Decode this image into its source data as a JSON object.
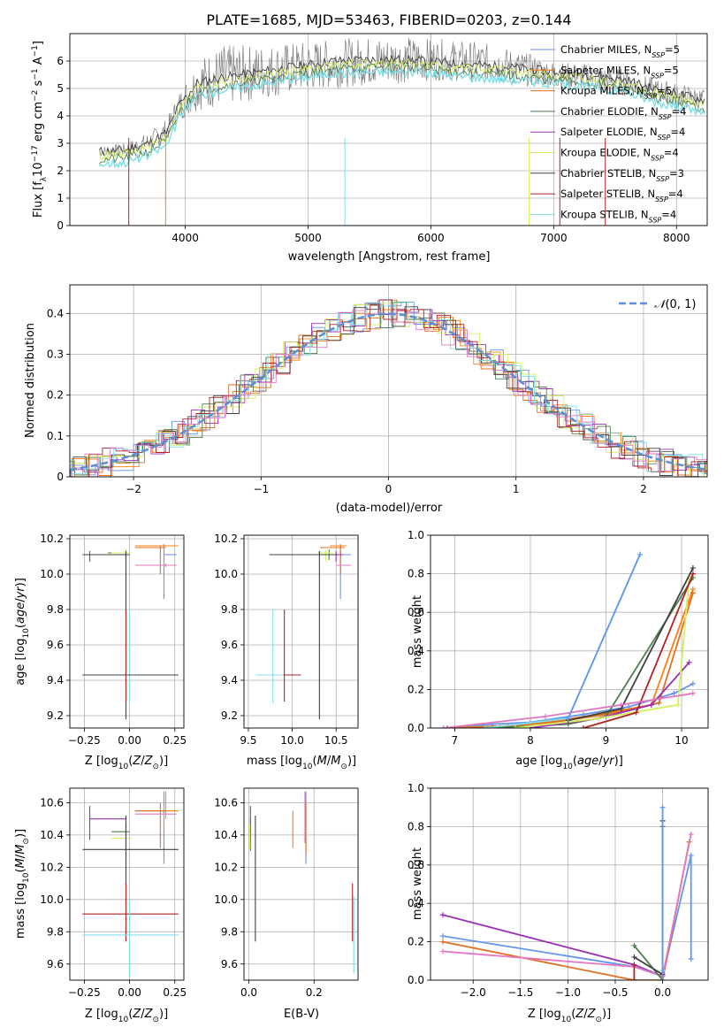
{
  "figure_title": "PLATE=1685, MJD=53463, FIBERID=0203, z=0.144",
  "colors": {
    "chabrier_miles": "#6495ed",
    "salpeter_miles": "#ff7f0e",
    "kroupa_miles": "#e07020",
    "chabrier_elodie": "#4b7f4b",
    "salpeter_elodie": "#9b30b5",
    "kroupa_elodie": "#d4f060",
    "chabrier_stelib": "#404040",
    "salpeter_stelib": "#b22222",
    "kroupa_stelib": "#7fdfe8",
    "data": "#808080",
    "pink": "#e377c2",
    "normal": "#5b8fd6",
    "grid": "#b0b0b0"
  },
  "chart_data": [
    {
      "id": "spectrum",
      "type": "line",
      "title": "PLATE=1685, MJD=53463, FIBERID=0203, z=0.144",
      "xlabel": "wavelength [Angstrom, rest frame]",
      "ylabel": "Flux [fλ10⁻¹⁷ erg cm⁻² s⁻¹ A⁻¹]",
      "xlim": [
        3060,
        8250
      ],
      "ylim": [
        0,
        7.0
      ],
      "xticks": [
        4000,
        5000,
        6000,
        7000,
        8000
      ],
      "yticks": [
        0,
        1,
        2,
        3,
        4,
        5,
        6
      ],
      "grid": true,
      "legend": {
        "placement": "top-right",
        "entries": [
          "Chabrier MILES, N_SSP=5",
          "Salpeter MILES, N_SSP=5",
          "Kroupa MILES, N_SSP=5",
          "Chabrier ELODIE, N_SSP=4",
          "Salpeter ELODIE, N_SSP=4",
          "Kroupa ELODIE, N_SSP=4",
          "Chabrier STELIB, N_SSP=3",
          "Salpeter STELIB, N_SSP=4",
          "Kroupa STELIB, N_SSP=4"
        ]
      },
      "data_envelope": {
        "x": [
          3300,
          3500,
          3700,
          3850,
          3950,
          4100,
          4300,
          4600,
          4900,
          5200,
          5500,
          5800,
          6100,
          6400,
          6700,
          7000,
          7300,
          7600,
          7800,
          8000,
          8200
        ],
        "low": [
          2.5,
          2.5,
          2.7,
          3.0,
          3.8,
          4.2,
          4.3,
          4.6,
          4.8,
          5.0,
          5.1,
          5.2,
          5.3,
          5.2,
          5.1,
          5.0,
          4.9,
          4.7,
          4.5,
          4.3,
          4.2
        ],
        "high": [
          2.9,
          3.0,
          3.4,
          3.9,
          4.9,
          6.1,
          6.6,
          6.6,
          6.7,
          6.8,
          6.9,
          6.9,
          6.8,
          6.7,
          6.4,
          6.0,
          5.9,
          5.7,
          5.4,
          5.2,
          5.0
        ]
      },
      "model_curve": {
        "x": [
          3300,
          3500,
          3700,
          3850,
          3950,
          4100,
          4300,
          4600,
          4900,
          5200,
          5500,
          5800,
          6100,
          6400,
          6700,
          7000,
          7300,
          7600,
          7800,
          8000,
          8200
        ],
        "y": [
          2.7,
          2.75,
          3.0,
          3.4,
          4.4,
          5.2,
          5.4,
          5.6,
          5.8,
          6.0,
          6.05,
          6.05,
          5.95,
          5.85,
          5.75,
          5.6,
          5.5,
          5.3,
          5.0,
          4.8,
          4.6
        ]
      }
    },
    {
      "id": "residuals",
      "type": "step",
      "xlabel": "(data-model)/error",
      "ylabel": "Normed distribution",
      "xlim": [
        -2.5,
        2.5
      ],
      "ylim": [
        0,
        0.47
      ],
      "xticks": [
        -2,
        -1,
        0,
        1,
        2
      ],
      "yticks": [
        0.0,
        0.1,
        0.2,
        0.3,
        0.4
      ],
      "grid": true,
      "legend": {
        "placement": "top-right",
        "entries": [
          "𝒩(0, 1)"
        ]
      }
    },
    {
      "id": "age_vs_Z",
      "type": "errorbar",
      "xlabel": "Z [log₁₀(Z/Z⊙)]",
      "ylabel": "age  [log₁₀(age/yr)]",
      "xlim": [
        -0.33,
        0.3
      ],
      "ylim": [
        9.13,
        10.22
      ],
      "xticks": [
        "-0.25",
        "0.00",
        "0.25"
      ],
      "yticks": [
        "9.2",
        "9.4",
        "9.6",
        "9.8",
        "10.0",
        "10.2"
      ],
      "grid": true,
      "points": [
        {
          "x": 0.19,
          "y": 10.11,
          "xlo": 0.19,
          "xhi": 0.26,
          "ylo": 9.86,
          "yhi": 10.13,
          "color": "chabrier_miles"
        },
        {
          "x": 0.19,
          "y": 10.16,
          "xlo": 0.03,
          "xhi": 0.27,
          "ylo": 10.1,
          "yhi": 10.17,
          "color": "salpeter_miles"
        },
        {
          "x": 0.17,
          "y": 10.15,
          "xlo": 0.03,
          "xhi": 0.2,
          "ylo": 10.0,
          "yhi": 10.16,
          "color": "kroupa_miles"
        },
        {
          "x": -0.02,
          "y": 10.12,
          "xlo": -0.12,
          "xhi": 0.0,
          "ylo": 10.08,
          "yhi": 10.14,
          "color": "chabrier_elodie"
        },
        {
          "x": -0.22,
          "y": 10.11,
          "xlo": -0.22,
          "xhi": 0.0,
          "ylo": 10.07,
          "yhi": 10.13,
          "color": "salpeter_elodie"
        },
        {
          "x": -0.02,
          "y": 10.12,
          "xlo": -0.1,
          "xhi": 0.01,
          "ylo": 10.07,
          "yhi": 10.14,
          "color": "kroupa_elodie"
        },
        {
          "x": -0.02,
          "y": 10.11,
          "xlo": -0.26,
          "xhi": 0.0,
          "ylo": 9.18,
          "yhi": 10.13,
          "color": "chabrier_stelib"
        },
        {
          "x": -0.02,
          "y": 9.43,
          "xlo": -0.26,
          "xhi": 0.27,
          "ylo": 9.28,
          "yhi": 9.8,
          "color": "salpeter_stelib"
        },
        {
          "x": 0.0,
          "y": 9.43,
          "xlo": -0.26,
          "xhi": 0.27,
          "ylo": 9.27,
          "yhi": 9.8,
          "color": "kroupa_stelib"
        },
        {
          "x": 0.2,
          "y": 10.05,
          "xlo": 0.03,
          "xhi": 0.26,
          "ylo": 10.04,
          "yhi": 10.06,
          "color": "pink"
        },
        {
          "x": -0.02,
          "y": 9.43,
          "xlo": -0.26,
          "xhi": 0.27,
          "ylo": 9.43,
          "yhi": 9.43,
          "color": "chabrier_stelib"
        }
      ]
    },
    {
      "id": "age_vs_mass",
      "type": "errorbar",
      "xlabel": "mass [log₁₀(M/M⊙)]",
      "xlim": [
        9.45,
        10.75
      ],
      "ylim": [
        9.13,
        10.22
      ],
      "xticks": [
        "9.5",
        "10.0",
        "10.5"
      ],
      "yticks": [
        "9.2",
        "9.4",
        "9.6",
        "9.8",
        "10.0",
        "10.2"
      ],
      "grid": true,
      "points": [
        {
          "x": 10.55,
          "y": 10.11,
          "xlo": 10.22,
          "xhi": 10.67,
          "ylo": 9.86,
          "yhi": 10.13,
          "color": "chabrier_miles"
        },
        {
          "x": 10.55,
          "y": 10.16,
          "xlo": 10.43,
          "xhi": 10.62,
          "ylo": 10.1,
          "yhi": 10.17,
          "color": "salpeter_miles"
        },
        {
          "x": 10.55,
          "y": 10.15,
          "xlo": 10.32,
          "xhi": 10.6,
          "ylo": 10.0,
          "yhi": 10.16,
          "color": "kroupa_miles"
        },
        {
          "x": 10.42,
          "y": 10.12,
          "xlo": 10.3,
          "xhi": 10.47,
          "ylo": 10.08,
          "yhi": 10.14,
          "color": "chabrier_elodie"
        },
        {
          "x": 10.5,
          "y": 10.11,
          "xlo": 10.37,
          "xhi": 10.58,
          "ylo": 10.07,
          "yhi": 10.13,
          "color": "salpeter_elodie"
        },
        {
          "x": 10.38,
          "y": 10.12,
          "xlo": 10.31,
          "xhi": 10.47,
          "ylo": 10.07,
          "yhi": 10.14,
          "color": "kroupa_elodie"
        },
        {
          "x": 10.31,
          "y": 10.11,
          "xlo": 9.74,
          "xhi": 10.52,
          "ylo": 9.18,
          "yhi": 10.13,
          "color": "chabrier_stelib"
        },
        {
          "x": 9.91,
          "y": 9.43,
          "xlo": 9.74,
          "xhi": 10.1,
          "ylo": 9.28,
          "yhi": 9.8,
          "color": "salpeter_stelib"
        },
        {
          "x": 9.78,
          "y": 9.43,
          "xlo": 9.58,
          "xhi": 9.9,
          "ylo": 9.27,
          "yhi": 9.8,
          "color": "kroupa_stelib"
        },
        {
          "x": 10.55,
          "y": 10.05,
          "xlo": 10.5,
          "xhi": 10.67,
          "ylo": 10.04,
          "yhi": 10.06,
          "color": "pink"
        }
      ]
    },
    {
      "id": "mass_weight_vs_age",
      "type": "line",
      "xlabel": "age  [log₁₀(age/yr)]",
      "ylabel": "mass weight",
      "xlim": [
        6.68,
        10.35
      ],
      "ylim": [
        0,
        1.0
      ],
      "xticks": [
        7,
        8,
        9,
        10
      ],
      "yticks": [
        "0.0",
        "0.2",
        "0.4",
        "0.6",
        "0.8",
        "1.0"
      ],
      "grid": true,
      "series": [
        {
          "color": "chabrier_miles",
          "x": [
            6.85,
            7.5,
            8.0,
            8.7,
            9.3,
            9.9,
            10.15
          ],
          "y": [
            0.0,
            0.02,
            0.03,
            0.07,
            0.11,
            0.18,
            0.23
          ]
        },
        {
          "color": "salpeter_miles",
          "x": [
            6.9,
            7.6,
            8.2,
            8.9,
            9.6,
            10.15
          ],
          "y": [
            0.0,
            0.01,
            0.03,
            0.07,
            0.12,
            0.72
          ]
        },
        {
          "color": "kroupa_miles",
          "x": [
            6.9,
            7.7,
            8.3,
            9.0,
            9.7,
            10.15
          ],
          "y": [
            0.0,
            0.01,
            0.03,
            0.07,
            0.13,
            0.7
          ]
        },
        {
          "color": "chabrier_elodie",
          "x": [
            7.5,
            8.5,
            9.0,
            10.15
          ],
          "y": [
            0.0,
            0.02,
            0.06,
            0.78
          ]
        },
        {
          "color": "salpeter_elodie",
          "x": [
            8.0,
            8.9,
            9.6,
            10.1
          ],
          "y": [
            0.0,
            0.05,
            0.12,
            0.34
          ]
        },
        {
          "color": "kroupa_elodie",
          "x": [
            7.8,
            8.9,
            9.95,
            10.1
          ],
          "y": [
            0.0,
            0.05,
            0.12,
            0.78
          ]
        },
        {
          "color": "chabrier_stelib",
          "x": [
            8.5,
            9.2,
            10.15
          ],
          "y": [
            0.04,
            0.1,
            0.83
          ]
        },
        {
          "color": "salpeter_stelib",
          "x": [
            8.7,
            9.4,
            10.15
          ],
          "y": [
            0.0,
            0.08,
            0.8
          ]
        },
        {
          "color": "kroupa_stelib",
          "x": [
            7.4,
            8.5,
            9.45
          ],
          "y": [
            0.0,
            0.05,
            0.9
          ]
        },
        {
          "color": "pink",
          "x": [
            6.85,
            8.2,
            9.2,
            10.15
          ],
          "y": [
            0.0,
            0.06,
            0.12,
            0.18
          ]
        },
        {
          "color": "chabrier_miles",
          "x": [
            8.5,
            9.45
          ],
          "y": [
            0.05,
            0.9
          ]
        }
      ]
    },
    {
      "id": "mass_vs_Z",
      "type": "errorbar",
      "xlabel": "Z [log₁₀(Z/Z⊙)]",
      "ylabel": "mass [log₁₀(M/M⊙)]",
      "xlim": [
        -0.33,
        0.3
      ],
      "ylim": [
        9.5,
        10.69
      ],
      "xticks": [
        "-0.25",
        "0.00",
        "0.25"
      ],
      "yticks": [
        "9.6",
        "9.8",
        "10.0",
        "10.2",
        "10.4",
        "10.6"
      ],
      "grid": true,
      "points": [
        {
          "x": 0.19,
          "y": 10.55,
          "xlo": 0.03,
          "xhi": 0.26,
          "ylo": 10.22,
          "yhi": 10.67,
          "color": "chabrier_miles"
        },
        {
          "x": 0.19,
          "y": 10.55,
          "xlo": 0.03,
          "xhi": 0.27,
          "ylo": 10.43,
          "yhi": 10.62,
          "color": "salpeter_miles"
        },
        {
          "x": 0.17,
          "y": 10.55,
          "xlo": 0.03,
          "xhi": 0.2,
          "ylo": 10.32,
          "yhi": 10.6,
          "color": "kroupa_miles"
        },
        {
          "x": -0.02,
          "y": 10.42,
          "xlo": -0.1,
          "xhi": 0.0,
          "ylo": 10.3,
          "yhi": 10.47,
          "color": "chabrier_elodie"
        },
        {
          "x": -0.22,
          "y": 10.5,
          "xlo": -0.22,
          "xhi": -0.02,
          "ylo": 10.37,
          "yhi": 10.58,
          "color": "salpeter_elodie"
        },
        {
          "x": -0.02,
          "y": 10.38,
          "xlo": -0.1,
          "xhi": 0.01,
          "ylo": 10.31,
          "yhi": 10.47,
          "color": "kroupa_elodie"
        },
        {
          "x": -0.02,
          "y": 10.31,
          "xlo": -0.26,
          "xhi": 0.27,
          "ylo": 9.74,
          "yhi": 10.52,
          "color": "chabrier_stelib"
        },
        {
          "x": -0.02,
          "y": 9.91,
          "xlo": -0.26,
          "xhi": 0.27,
          "ylo": 9.74,
          "yhi": 10.1,
          "color": "salpeter_stelib"
        },
        {
          "x": 0.0,
          "y": 9.78,
          "xlo": -0.26,
          "xhi": 0.27,
          "ylo": 9.52,
          "yhi": 10.0,
          "color": "kroupa_stelib"
        },
        {
          "x": 0.2,
          "y": 10.53,
          "xlo": 0.03,
          "xhi": 0.26,
          "ylo": 10.5,
          "yhi": 10.67,
          "color": "pink"
        }
      ]
    },
    {
      "id": "mass_vs_ebv",
      "type": "errorbar",
      "xlabel": "E(B-V)",
      "xlim": [
        -0.015,
        0.335
      ],
      "ylim": [
        9.5,
        10.69
      ],
      "xticks": [
        "0.0",
        "0.2"
      ],
      "yticks": [
        "9.6",
        "9.8",
        "10.0",
        "10.2",
        "10.4",
        "10.6"
      ],
      "grid": true,
      "points": [
        {
          "x": 0.175,
          "y": 10.45,
          "ylo": 10.22,
          "yhi": 10.67,
          "color": "chabrier_miles"
        },
        {
          "x": 0.135,
          "y": 10.45,
          "ylo": 10.32,
          "yhi": 10.55,
          "color": "salpeter_miles"
        },
        {
          "x": 0.175,
          "y": 10.45,
          "ylo": 10.28,
          "yhi": 10.6,
          "color": "kroupa_miles"
        },
        {
          "x": 0.005,
          "y": 10.42,
          "ylo": 10.3,
          "yhi": 10.5,
          "color": "chabrier_elodie"
        },
        {
          "x": 0.005,
          "y": 10.5,
          "ylo": 10.38,
          "yhi": 10.58,
          "color": "salpeter_elodie"
        },
        {
          "x": 0.003,
          "y": 10.38,
          "ylo": 10.31,
          "yhi": 10.47,
          "color": "kroupa_elodie"
        },
        {
          "x": 0.02,
          "y": 10.1,
          "ylo": 9.74,
          "yhi": 10.52,
          "color": "chabrier_stelib"
        },
        {
          "x": 0.318,
          "y": 9.91,
          "ylo": 9.74,
          "yhi": 10.1,
          "color": "salpeter_stelib"
        },
        {
          "x": 0.322,
          "y": 9.78,
          "ylo": 9.54,
          "yhi": 10.02,
          "color": "kroupa_stelib"
        },
        {
          "x": 0.172,
          "y": 10.5,
          "ylo": 10.35,
          "yhi": 10.67,
          "color": "pink"
        }
      ]
    },
    {
      "id": "mass_weight_vs_Z",
      "type": "line",
      "xlabel": "Z [log₁₀(Z/Z⊙)]",
      "ylabel": "mass weight",
      "xlim": [
        -2.45,
        0.48
      ],
      "ylim": [
        0,
        1.0
      ],
      "xticks": [
        "-2.0",
        "-1.5",
        "-1.0",
        "-0.5",
        "0.0"
      ],
      "yticks": [
        "0.0",
        "0.2",
        "0.4",
        "0.6",
        "0.8",
        "1.0"
      ],
      "grid": true,
      "series": [
        {
          "color": "salpeter_elodie",
          "x": [
            -2.32,
            -0.3,
            0.0
          ],
          "y": [
            0.34,
            0.08,
            0.02
          ]
        },
        {
          "color": "chabrier_miles",
          "x": [
            -2.32,
            -0.3,
            0.0,
            0.3,
            0.3
          ],
          "y": [
            0.23,
            0.07,
            0.02,
            0.65,
            0.11
          ]
        },
        {
          "color": "kroupa_miles",
          "x": [
            -2.32,
            -0.3,
            0.0,
            0.28
          ],
          "y": [
            0.2,
            0.0,
            0.0,
            0.72
          ]
        },
        {
          "color": "pink",
          "x": [
            -2.32,
            -0.3,
            0.0,
            0.3
          ],
          "y": [
            0.15,
            0.07,
            0.02,
            0.76
          ]
        },
        {
          "color": "chabrier_elodie",
          "x": [
            -0.3,
            0.0,
            0.0
          ],
          "y": [
            0.18,
            0.0,
            0.8
          ]
        },
        {
          "color": "chabrier_stelib",
          "x": [
            -0.3,
            0.0,
            0.0
          ],
          "y": [
            0.12,
            0.03,
            0.83
          ]
        },
        {
          "color": "kroupa_stelib",
          "x": [
            0.0,
            0.0
          ],
          "y": [
            0.05,
            0.9
          ]
        },
        {
          "color": "salpeter_stelib",
          "x": [
            -0.3,
            -0.3
          ],
          "y": [
            0.0,
            0.08
          ]
        },
        {
          "color": "chabrier_miles",
          "x": [
            0.0,
            0.0
          ],
          "y": [
            0.0,
            0.9
          ]
        }
      ]
    }
  ]
}
